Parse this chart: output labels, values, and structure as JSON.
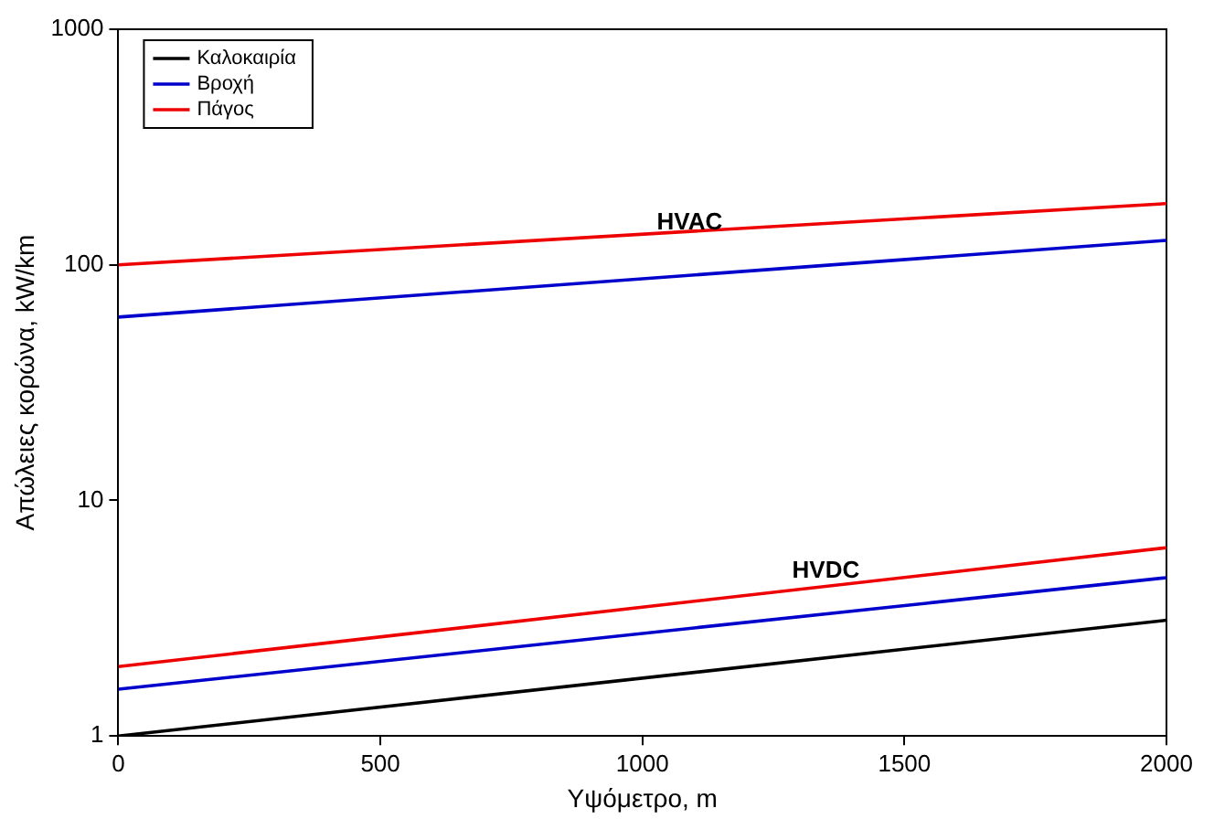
{
  "chart_data": {
    "type": "line",
    "xlabel": "Υψόμετρο, m",
    "ylabel": "Απώλειες κορώνα, kW/km",
    "x": [
      0,
      2000
    ],
    "series": [
      {
        "name": "Καλοκαιρία",
        "color": "#000000",
        "values": [
          1,
          3.1
        ]
      },
      {
        "name": "Βροχή",
        "color": "#0000cc",
        "values": [
          1.58,
          4.7
        ]
      },
      {
        "name": "Πάγος",
        "color": "#ee0000",
        "values": [
          1.97,
          6.3
        ]
      },
      {
        "color": "#0000cc",
        "values": [
          60,
          127
        ]
      },
      {
        "color": "#ee0000",
        "values": [
          100,
          182
        ]
      }
    ],
    "log": "y",
    "xlim": [
      0,
      2000
    ],
    "xticks": [
      0,
      500,
      1000,
      1500,
      2000
    ],
    "ylim": [
      1,
      1000
    ],
    "yticks": [
      1,
      10,
      100,
      1000
    ],
    "grid": false,
    "legend": "top left",
    "marker": "none",
    "line_style": "solid",
    "annotations": [
      {
        "text": "HVAC",
        "x": 1090,
        "y": 130
      },
      {
        "text": "HVDC",
        "x": 1350,
        "y": 4.3
      }
    ]
  }
}
